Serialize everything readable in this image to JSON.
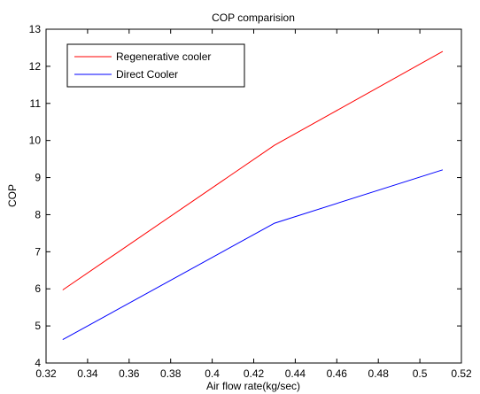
{
  "chart_data": {
    "type": "line",
    "title": "COP comparision",
    "xlabel": "Air flow rate(kg/sec)",
    "ylabel": "COP",
    "xlim": [
      0.32,
      0.52
    ],
    "ylim": [
      4,
      13
    ],
    "xticks": [
      0.32,
      0.34,
      0.36,
      0.38,
      0.4,
      0.42,
      0.44,
      0.46,
      0.48,
      0.5,
      0.52
    ],
    "xtick_labels": [
      "0.32",
      "0.34",
      "0.36",
      "0.38",
      "0.4",
      "0.42",
      "0.44",
      "0.46",
      "0.48",
      "0.5",
      "0.52"
    ],
    "yticks": [
      4,
      5,
      6,
      7,
      8,
      9,
      10,
      11,
      12,
      13
    ],
    "ytick_labels": [
      "4",
      "5",
      "6",
      "7",
      "8",
      "9",
      "10",
      "11",
      "12",
      "13"
    ],
    "grid": false,
    "legend_position": "top-left",
    "series": [
      {
        "name": "Regenerative cooler",
        "color": "#ff0000",
        "x": [
          0.328,
          0.43,
          0.511
        ],
        "y": [
          5.97,
          9.87,
          12.4
        ]
      },
      {
        "name": "Direct Cooler",
        "color": "#0000ff",
        "x": [
          0.328,
          0.43,
          0.511
        ],
        "y": [
          4.63,
          7.77,
          9.21
        ]
      }
    ]
  }
}
